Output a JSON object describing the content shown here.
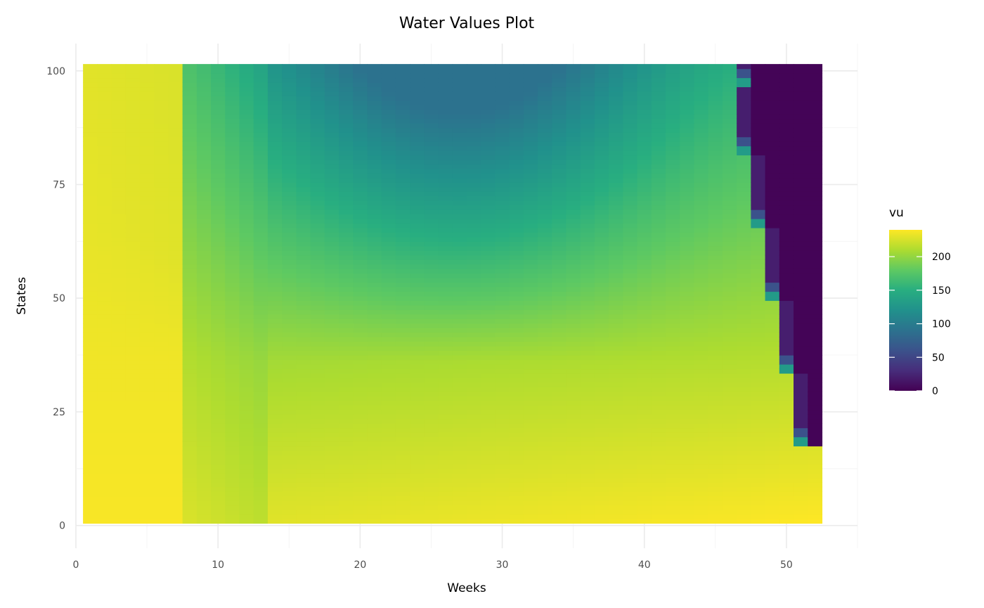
{
  "chart_data": {
    "type": "heatmap",
    "title": "Water Values Plot",
    "xlabel": "Weeks",
    "ylabel": "States",
    "xlim": [
      0,
      55
    ],
    "ylim": [
      -5,
      106
    ],
    "x_ticks": [
      0,
      10,
      20,
      30,
      40,
      50
    ],
    "y_ticks": [
      0,
      25,
      50,
      75,
      100
    ],
    "x_range": [
      1,
      52
    ],
    "y_range": [
      1,
      101
    ],
    "grid": true,
    "legend": {
      "title": "vu",
      "placement": "right",
      "min": 0,
      "max": 240,
      "ticks": [
        0,
        50,
        100,
        150,
        200
      ],
      "colorscale": "viridis"
    },
    "model": {
      "description_values": "vu value per week (1-52) and state (1-101)",
      "y_band_breaks": [
        17,
        33,
        49,
        65,
        81,
        96
      ],
      "base_by_band_bottom": [
        215,
        200,
        195,
        180,
        175,
        165,
        160
      ],
      "base_by_band_top": [
        238,
        232,
        230,
        225,
        215,
        205,
        195
      ],
      "band_week_cutoffs": [
        52,
        51,
        50,
        49,
        48,
        47,
        47
      ]
    }
  }
}
